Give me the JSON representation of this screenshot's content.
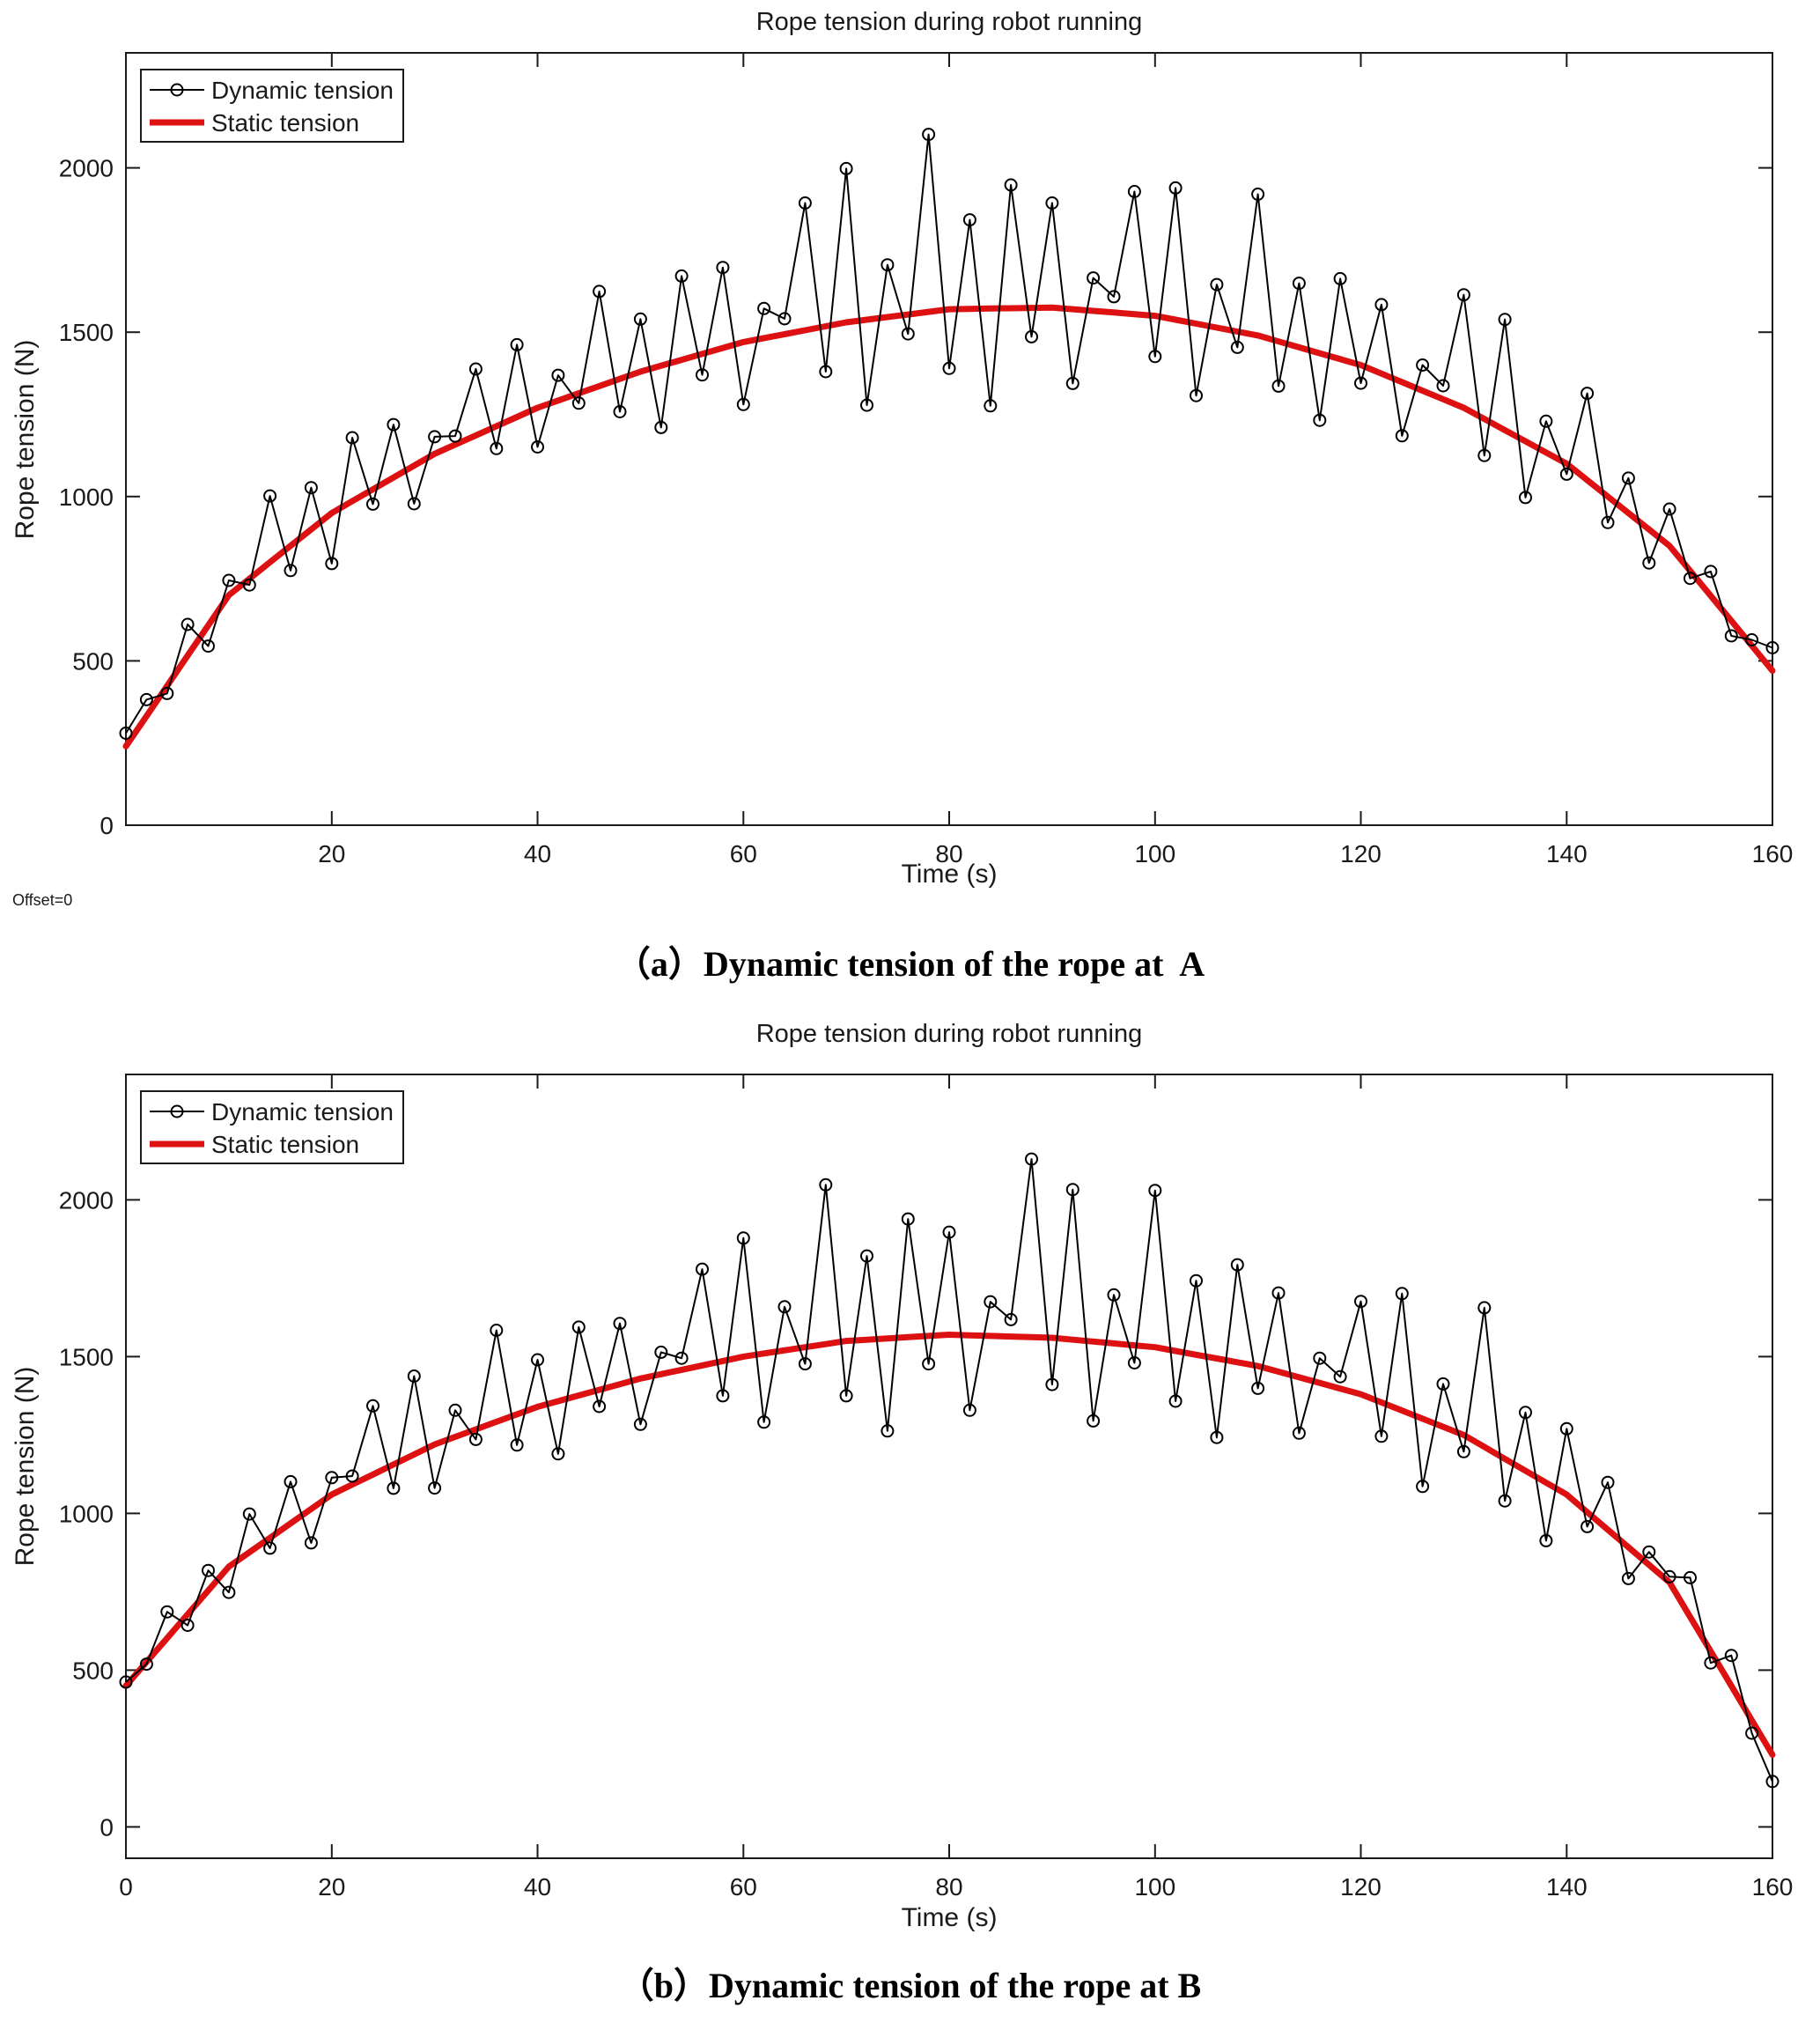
{
  "colors": {
    "axis": "#1a1a1a",
    "dynamic": "#000000",
    "static": "#dd1111",
    "background": "#ffffff"
  },
  "captions": {
    "a": "（a）Dynamic tension of the rope at  A",
    "b": "（b）Dynamic tension of the rope at B"
  },
  "chart_data": [
    {
      "type": "line",
      "title": "Rope tension during robot running",
      "xlabel": "Time (s)",
      "ylabel": "Rope tension (N)",
      "offset_note": "Offset=0",
      "xlim": [
        0,
        160
      ],
      "ylim": [
        0,
        2350
      ],
      "xticks": [
        20,
        40,
        60,
        80,
        100,
        120,
        140,
        160
      ],
      "yticks": [
        0,
        500,
        1000,
        1500,
        2000
      ],
      "grid": false,
      "legend_position": "top-left",
      "x": [
        0,
        2,
        4,
        6,
        8,
        10,
        12,
        14,
        16,
        18,
        20,
        22,
        24,
        26,
        28,
        30,
        32,
        34,
        36,
        38,
        40,
        42,
        44,
        46,
        48,
        50,
        52,
        54,
        56,
        58,
        60,
        62,
        64,
        66,
        68,
        70,
        72,
        74,
        76,
        78,
        80,
        82,
        84,
        86,
        88,
        90,
        92,
        94,
        96,
        98,
        100,
        102,
        104,
        106,
        108,
        110,
        112,
        114,
        116,
        118,
        120,
        122,
        124,
        126,
        128,
        130,
        132,
        134,
        136,
        138,
        140,
        142,
        144,
        146,
        148,
        150,
        152,
        154,
        156,
        158,
        160
      ],
      "series": [
        {
          "name": "Dynamic tension",
          "color": "#000000",
          "marker": "circle",
          "values": [
            280,
            382,
            401,
            611,
            545,
            745,
            731,
            1002,
            775,
            1027,
            796,
            1179,
            977,
            1219,
            978,
            1182,
            1184,
            1388,
            1146,
            1462,
            1151,
            1369,
            1284,
            1624,
            1258,
            1540,
            1210,
            1671,
            1370,
            1697,
            1280,
            1572,
            1541,
            1893,
            1380,
            1998,
            1278,
            1705,
            1495,
            2102,
            1390,
            1842,
            1276,
            1948,
            1486,
            1893,
            1344,
            1665,
            1608,
            1928,
            1426,
            1939,
            1307,
            1645,
            1454,
            1920,
            1336,
            1649,
            1232,
            1663,
            1345,
            1584,
            1185,
            1400,
            1337,
            1614,
            1125,
            1539,
            997,
            1229,
            1068,
            1314,
            921,
            1056,
            798,
            962,
            751,
            772,
            576,
            564,
            540
          ]
        },
        {
          "name": "Static tension",
          "color": "#dd1111",
          "marker": "none",
          "values": [
            240,
            332,
            424,
            516,
            608,
            700,
            750,
            800,
            850,
            900,
            950,
            986,
            1022,
            1058,
            1094,
            1130,
            1158,
            1186,
            1214,
            1242,
            1270,
            1292,
            1314,
            1336,
            1358,
            1380,
            1398,
            1416,
            1434,
            1452,
            1470,
            1482,
            1494,
            1506,
            1518,
            1530,
            1538,
            1546,
            1554,
            1562,
            1570,
            1571,
            1572,
            1573,
            1574,
            1575,
            1570,
            1565,
            1560,
            1555,
            1550,
            1538,
            1526,
            1514,
            1502,
            1490,
            1472,
            1454,
            1436,
            1418,
            1400,
            1374,
            1348,
            1322,
            1296,
            1270,
            1236,
            1202,
            1168,
            1134,
            1100,
            1050,
            1000,
            950,
            900,
            850,
            774,
            698,
            622,
            546,
            470
          ]
        }
      ]
    },
    {
      "type": "line",
      "title": "Rope tension during robot running",
      "xlabel": "Time (s)",
      "ylabel": "Rope tension (N)",
      "xlim": [
        0,
        160
      ],
      "ylim": [
        -100,
        2400
      ],
      "xticks": [
        0,
        20,
        40,
        60,
        80,
        100,
        120,
        140,
        160
      ],
      "yticks": [
        0,
        500,
        1000,
        1500,
        2000
      ],
      "grid": false,
      "legend_position": "top-left",
      "x": [
        0,
        2,
        4,
        6,
        8,
        10,
        12,
        14,
        16,
        18,
        20,
        22,
        24,
        26,
        28,
        30,
        32,
        34,
        36,
        38,
        40,
        42,
        44,
        46,
        48,
        50,
        52,
        54,
        56,
        58,
        60,
        62,
        64,
        66,
        68,
        70,
        72,
        74,
        76,
        78,
        80,
        82,
        84,
        86,
        88,
        90,
        92,
        94,
        96,
        98,
        100,
        102,
        104,
        106,
        108,
        110,
        112,
        114,
        116,
        118,
        120,
        122,
        124,
        126,
        128,
        130,
        132,
        134,
        136,
        138,
        140,
        142,
        144,
        146,
        148,
        150,
        152,
        154,
        156,
        158,
        160
      ],
      "series": [
        {
          "name": "Dynamic tension",
          "color": "#000000",
          "marker": "circle",
          "values": [
            462,
            519,
            686,
            643,
            818,
            748,
            998,
            889,
            1101,
            906,
            1114,
            1119,
            1343,
            1080,
            1438,
            1081,
            1329,
            1236,
            1584,
            1218,
            1490,
            1190,
            1594,
            1341,
            1606,
            1284,
            1514,
            1495,
            1779,
            1375,
            1878,
            1291,
            1659,
            1477,
            2048,
            1375,
            1821,
            1263,
            1939,
            1477,
            1897,
            1329,
            1675,
            1618,
            2130,
            1411,
            2033,
            1295,
            1697,
            1480,
            2030,
            1358,
            1742,
            1242,
            1793,
            1399,
            1703,
            1256,
            1495,
            1436,
            1676,
            1246,
            1701,
            1086,
            1413,
            1197,
            1656,
            1040,
            1322,
            913,
            1270,
            958,
            1099,
            792,
            877,
            798,
            795,
            523,
            547,
            299,
            145
          ]
        },
        {
          "name": "Static tension",
          "color": "#dd1111",
          "marker": "none",
          "values": [
            450,
            526,
            602,
            678,
            754,
            830,
            876,
            922,
            968,
            1014,
            1060,
            1092,
            1124,
            1156,
            1188,
            1220,
            1244,
            1268,
            1292,
            1316,
            1340,
            1358,
            1376,
            1394,
            1412,
            1430,
            1444,
            1458,
            1472,
            1486,
            1500,
            1510,
            1520,
            1530,
            1540,
            1550,
            1554,
            1558,
            1562,
            1566,
            1570,
            1568,
            1566,
            1564,
            1562,
            1560,
            1554,
            1548,
            1542,
            1536,
            1530,
            1518,
            1506,
            1494,
            1482,
            1470,
            1452,
            1434,
            1416,
            1398,
            1380,
            1354,
            1328,
            1302,
            1276,
            1250,
            1212,
            1174,
            1136,
            1098,
            1060,
            1004,
            948,
            892,
            836,
            780,
            670,
            560,
            450,
            340,
            230
          ]
        }
      ]
    }
  ]
}
